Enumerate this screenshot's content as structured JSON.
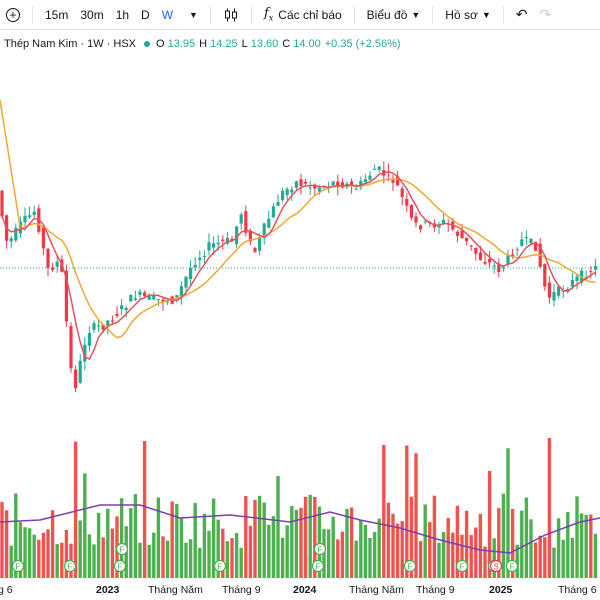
{
  "toolbar": {
    "intervals": [
      "15m",
      "30m",
      "1h",
      "D",
      "W"
    ],
    "active_interval": "W",
    "indicators_label": "Các chỉ báo",
    "chart_type_label": "Biểu đồ",
    "profile_label": "Hồ sơ",
    "icons": [
      "plus-circle-icon",
      "candles-icon",
      "fx-icon",
      "undo-icon",
      "redo-icon"
    ]
  },
  "symbol": {
    "name": "Thép Nam Kim · 1W · HSX",
    "o_label": "O",
    "o": "13.95",
    "h_label": "H",
    "h": "14.25",
    "l_label": "L",
    "l": "13.60",
    "c_label": "C",
    "c": "14.00",
    "change": "+0.35 (+2.56%)"
  },
  "colors": {
    "up": "#22ab94",
    "down": "#f23645",
    "vol_up": "#4caf50",
    "vol_down": "#ef5350",
    "ma_fast": "#e8505b",
    "ma_slow": "#f0a830",
    "vol_ma": "#7b3fb0",
    "price_line": "#26a69a"
  },
  "x_axis": [
    {
      "label": "g 6",
      "bold": false
    },
    {
      "label": "2023",
      "bold": true
    },
    {
      "label": "Tháng Năm",
      "bold": false
    },
    {
      "label": "Tháng 9",
      "bold": false
    },
    {
      "label": "2024",
      "bold": true
    },
    {
      "label": "Tháng Năm",
      "bold": false
    },
    {
      "label": "Tháng 9",
      "bold": false
    },
    {
      "label": "2025",
      "bold": true
    },
    {
      "label": "Tháng 6",
      "bold": false
    }
  ],
  "event_markers": [
    {
      "label": "F",
      "color": "#4caf50"
    },
    {
      "label": "F",
      "color": "#4caf50"
    },
    {
      "label": "F",
      "color": "#4caf50"
    },
    {
      "label": "F",
      "color": "#4caf50"
    },
    {
      "label": "F",
      "color": "#4caf50"
    },
    {
      "label": "F",
      "color": "#4caf50"
    },
    {
      "label": "F",
      "color": "#4caf50"
    },
    {
      "label": "F",
      "color": "#4caf50"
    },
    {
      "label": "F",
      "color": "#4caf50"
    },
    {
      "label": "F",
      "color": "#4caf50"
    },
    {
      "label": "S",
      "color": "#f23645"
    },
    {
      "label": "F",
      "color": "#4caf50"
    }
  ]
}
